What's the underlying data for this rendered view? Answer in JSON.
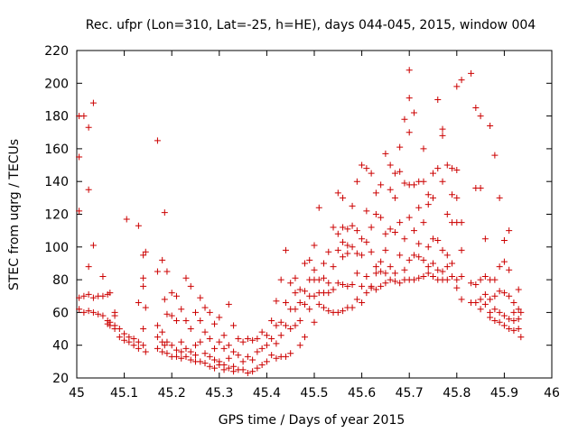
{
  "chart_data": {
    "type": "scatter",
    "title": "Rec. ufpr (Lon=310, Lat=-25, h=HE), days 044-045, 2015, window 004",
    "xlabel": "GPS time / Days of year 2015",
    "ylabel": "STEC from uqrg / TECUs",
    "xlim": [
      45.0,
      46.0
    ],
    "ylim": [
      20,
      220
    ],
    "xticks": [
      "45",
      "45.1",
      "45.2",
      "45.3",
      "45.4",
      "45.5",
      "45.6",
      "45.7",
      "45.8",
      "45.9",
      "46"
    ],
    "yticks": [
      "20",
      "40",
      "60",
      "80",
      "100",
      "120",
      "140",
      "160",
      "180",
      "200",
      "220"
    ],
    "grid": false,
    "legend": "none",
    "marker": "+",
    "color": "#cc0000",
    "points": [
      [
        45.005,
        180
      ],
      [
        45.005,
        155
      ],
      [
        45.005,
        122
      ],
      [
        45.005,
        69
      ],
      [
        45.005,
        62
      ],
      [
        45.015,
        180
      ],
      [
        45.015,
        70
      ],
      [
        45.015,
        60
      ],
      [
        45.025,
        173
      ],
      [
        45.025,
        135
      ],
      [
        45.025,
        88
      ],
      [
        45.025,
        71
      ],
      [
        45.025,
        61
      ],
      [
        45.035,
        188
      ],
      [
        45.035,
        101
      ],
      [
        45.035,
        69
      ],
      [
        45.035,
        60
      ],
      [
        45.045,
        70
      ],
      [
        45.045,
        59
      ],
      [
        45.055,
        82
      ],
      [
        45.055,
        70
      ],
      [
        45.055,
        58
      ],
      [
        45.065,
        71
      ],
      [
        45.065,
        55
      ],
      [
        45.065,
        53
      ],
      [
        45.07,
        72
      ],
      [
        45.07,
        54
      ],
      [
        45.07,
        52
      ],
      [
        45.08,
        60
      ],
      [
        45.08,
        58
      ],
      [
        45.08,
        52
      ],
      [
        45.08,
        50
      ],
      [
        45.09,
        50
      ],
      [
        45.09,
        45
      ],
      [
        45.1,
        47
      ],
      [
        45.1,
        43
      ],
      [
        45.105,
        117
      ],
      [
        45.11,
        45
      ],
      [
        45.11,
        42
      ],
      [
        45.12,
        44
      ],
      [
        45.12,
        40
      ],
      [
        45.13,
        113
      ],
      [
        45.13,
        66
      ],
      [
        45.13,
        42
      ],
      [
        45.13,
        38
      ],
      [
        45.14,
        95
      ],
      [
        45.14,
        81
      ],
      [
        45.14,
        76
      ],
      [
        45.14,
        50
      ],
      [
        45.14,
        40
      ],
      [
        45.145,
        97
      ],
      [
        45.145,
        63
      ],
      [
        45.145,
        36
      ],
      [
        45.17,
        165
      ],
      [
        45.17,
        85
      ],
      [
        45.17,
        52
      ],
      [
        45.17,
        45
      ],
      [
        45.17,
        38
      ],
      [
        45.18,
        92
      ],
      [
        45.18,
        48
      ],
      [
        45.18,
        42
      ],
      [
        45.18,
        36
      ],
      [
        45.185,
        121
      ],
      [
        45.185,
        68
      ],
      [
        45.185,
        40
      ],
      [
        45.19,
        85
      ],
      [
        45.19,
        59
      ],
      [
        45.19,
        42
      ],
      [
        45.19,
        35
      ],
      [
        45.2,
        72
      ],
      [
        45.2,
        58
      ],
      [
        45.2,
        40
      ],
      [
        45.2,
        33
      ],
      [
        45.21,
        70
      ],
      [
        45.21,
        55
      ],
      [
        45.21,
        37
      ],
      [
        45.21,
        33
      ],
      [
        45.22,
        62
      ],
      [
        45.22,
        42
      ],
      [
        45.22,
        36
      ],
      [
        45.22,
        32
      ],
      [
        45.23,
        81
      ],
      [
        45.23,
        55
      ],
      [
        45.23,
        38
      ],
      [
        45.23,
        33
      ],
      [
        45.24,
        76
      ],
      [
        45.24,
        50
      ],
      [
        45.24,
        36
      ],
      [
        45.24,
        31
      ],
      [
        45.25,
        60
      ],
      [
        45.25,
        40
      ],
      [
        45.25,
        34
      ],
      [
        45.25,
        30
      ],
      [
        45.26,
        69
      ],
      [
        45.26,
        55
      ],
      [
        45.26,
        42
      ],
      [
        45.26,
        30
      ],
      [
        45.27,
        63
      ],
      [
        45.27,
        48
      ],
      [
        45.27,
        35
      ],
      [
        45.27,
        29
      ],
      [
        45.28,
        60
      ],
      [
        45.28,
        44
      ],
      [
        45.28,
        33
      ],
      [
        45.28,
        27
      ],
      [
        45.29,
        53
      ],
      [
        45.29,
        38
      ],
      [
        45.29,
        31
      ],
      [
        45.29,
        26
      ],
      [
        45.3,
        57
      ],
      [
        45.3,
        42
      ],
      [
        45.3,
        30
      ],
      [
        45.3,
        28
      ],
      [
        45.31,
        46
      ],
      [
        45.31,
        38
      ],
      [
        45.31,
        28
      ],
      [
        45.31,
        25
      ],
      [
        45.32,
        65
      ],
      [
        45.32,
        40
      ],
      [
        45.32,
        32
      ],
      [
        45.32,
        26
      ],
      [
        45.33,
        52
      ],
      [
        45.33,
        36
      ],
      [
        45.33,
        27
      ],
      [
        45.33,
        24
      ],
      [
        45.34,
        44
      ],
      [
        45.34,
        34
      ],
      [
        45.34,
        25
      ],
      [
        45.35,
        42
      ],
      [
        45.35,
        30
      ],
      [
        45.35,
        25
      ],
      [
        45.36,
        44
      ],
      [
        45.36,
        33
      ],
      [
        45.36,
        23
      ],
      [
        45.37,
        43
      ],
      [
        45.37,
        31
      ],
      [
        45.37,
        24
      ],
      [
        45.38,
        44
      ],
      [
        45.38,
        36
      ],
      [
        45.38,
        26
      ],
      [
        45.39,
        48
      ],
      [
        45.39,
        38
      ],
      [
        45.39,
        28
      ],
      [
        45.4,
        46
      ],
      [
        45.4,
        40
      ],
      [
        45.4,
        30
      ],
      [
        45.41,
        55
      ],
      [
        45.41,
        44
      ],
      [
        45.41,
        34
      ],
      [
        45.42,
        67
      ],
      [
        45.42,
        52
      ],
      [
        45.42,
        41
      ],
      [
        45.42,
        32
      ],
      [
        45.43,
        80
      ],
      [
        45.43,
        54
      ],
      [
        45.43,
        46
      ],
      [
        45.43,
        33
      ],
      [
        45.44,
        98
      ],
      [
        45.44,
        66
      ],
      [
        45.44,
        52
      ],
      [
        45.44,
        33
      ],
      [
        45.45,
        78
      ],
      [
        45.45,
        62
      ],
      [
        45.45,
        50
      ],
      [
        45.45,
        35
      ],
      [
        45.46,
        81
      ],
      [
        45.46,
        72
      ],
      [
        45.46,
        62
      ],
      [
        45.46,
        52
      ],
      [
        45.47,
        74
      ],
      [
        45.47,
        66
      ],
      [
        45.47,
        55
      ],
      [
        45.47,
        40
      ],
      [
        45.48,
        90
      ],
      [
        45.48,
        73
      ],
      [
        45.48,
        65
      ],
      [
        45.48,
        45
      ],
      [
        45.49,
        92
      ],
      [
        45.49,
        80
      ],
      [
        45.49,
        70
      ],
      [
        45.49,
        62
      ],
      [
        45.5,
        101
      ],
      [
        45.5,
        86
      ],
      [
        45.5,
        80
      ],
      [
        45.5,
        70
      ],
      [
        45.5,
        54
      ],
      [
        45.51,
        124
      ],
      [
        45.51,
        80
      ],
      [
        45.51,
        72
      ],
      [
        45.51,
        65
      ],
      [
        45.52,
        90
      ],
      [
        45.52,
        81
      ],
      [
        45.52,
        72
      ],
      [
        45.52,
        63
      ],
      [
        45.53,
        97
      ],
      [
        45.53,
        78
      ],
      [
        45.53,
        72
      ],
      [
        45.53,
        61
      ],
      [
        45.54,
        112
      ],
      [
        45.54,
        88
      ],
      [
        45.54,
        74
      ],
      [
        45.54,
        60
      ],
      [
        45.55,
        133
      ],
      [
        45.55,
        108
      ],
      [
        45.55,
        98
      ],
      [
        45.55,
        78
      ],
      [
        45.55,
        60
      ],
      [
        45.56,
        130
      ],
      [
        45.56,
        112
      ],
      [
        45.56,
        103
      ],
      [
        45.56,
        94
      ],
      [
        45.56,
        77
      ],
      [
        45.56,
        61
      ],
      [
        45.57,
        111
      ],
      [
        45.57,
        101
      ],
      [
        45.57,
        96
      ],
      [
        45.57,
        76
      ],
      [
        45.57,
        63
      ],
      [
        45.58,
        125
      ],
      [
        45.58,
        113
      ],
      [
        45.58,
        100
      ],
      [
        45.58,
        77
      ],
      [
        45.58,
        63
      ],
      [
        45.59,
        140
      ],
      [
        45.59,
        110
      ],
      [
        45.59,
        96
      ],
      [
        45.59,
        84
      ],
      [
        45.59,
        68
      ],
      [
        45.6,
        150
      ],
      [
        45.6,
        105
      ],
      [
        45.6,
        95
      ],
      [
        45.6,
        76
      ],
      [
        45.6,
        66
      ],
      [
        45.61,
        148
      ],
      [
        45.61,
        122
      ],
      [
        45.61,
        103
      ],
      [
        45.61,
        82
      ],
      [
        45.61,
        72
      ],
      [
        45.62,
        145
      ],
      [
        45.62,
        112
      ],
      [
        45.62,
        97
      ],
      [
        45.62,
        76
      ],
      [
        45.62,
        75
      ],
      [
        45.63,
        133
      ],
      [
        45.63,
        120
      ],
      [
        45.63,
        88
      ],
      [
        45.63,
        84
      ],
      [
        45.63,
        74
      ],
      [
        45.64,
        138
      ],
      [
        45.64,
        118
      ],
      [
        45.64,
        91
      ],
      [
        45.64,
        85
      ],
      [
        45.64,
        76
      ],
      [
        45.65,
        157
      ],
      [
        45.65,
        108
      ],
      [
        45.65,
        98
      ],
      [
        45.65,
        84
      ],
      [
        45.65,
        78
      ],
      [
        45.66,
        150
      ],
      [
        45.66,
        135
      ],
      [
        45.66,
        111
      ],
      [
        45.66,
        88
      ],
      [
        45.66,
        80
      ],
      [
        45.67,
        145
      ],
      [
        45.67,
        130
      ],
      [
        45.67,
        109
      ],
      [
        45.67,
        84
      ],
      [
        45.67,
        79
      ],
      [
        45.68,
        161
      ],
      [
        45.68,
        146
      ],
      [
        45.68,
        115
      ],
      [
        45.68,
        95
      ],
      [
        45.68,
        78
      ],
      [
        45.69,
        178
      ],
      [
        45.69,
        139
      ],
      [
        45.69,
        105
      ],
      [
        45.69,
        86
      ],
      [
        45.69,
        80
      ],
      [
        45.7,
        208
      ],
      [
        45.7,
        191
      ],
      [
        45.7,
        170
      ],
      [
        45.7,
        138
      ],
      [
        45.7,
        118
      ],
      [
        45.7,
        92
      ],
      [
        45.7,
        80
      ],
      [
        45.71,
        182
      ],
      [
        45.71,
        138
      ],
      [
        45.71,
        110
      ],
      [
        45.71,
        95
      ],
      [
        45.71,
        80
      ],
      [
        45.72,
        140
      ],
      [
        45.72,
        124
      ],
      [
        45.72,
        102
      ],
      [
        45.72,
        94
      ],
      [
        45.72,
        81
      ],
      [
        45.73,
        160
      ],
      [
        45.73,
        140
      ],
      [
        45.73,
        115
      ],
      [
        45.73,
        92
      ],
      [
        45.73,
        82
      ],
      [
        45.74,
        132
      ],
      [
        45.74,
        126
      ],
      [
        45.74,
        100
      ],
      [
        45.74,
        88
      ],
      [
        45.74,
        84
      ],
      [
        45.75,
        145
      ],
      [
        45.75,
        130
      ],
      [
        45.75,
        105
      ],
      [
        45.75,
        90
      ],
      [
        45.75,
        82
      ],
      [
        45.76,
        190
      ],
      [
        45.76,
        148
      ],
      [
        45.76,
        104
      ],
      [
        45.76,
        86
      ],
      [
        45.76,
        80
      ],
      [
        45.77,
        172
      ],
      [
        45.77,
        168
      ],
      [
        45.77,
        140
      ],
      [
        45.77,
        98
      ],
      [
        45.77,
        85
      ],
      [
        45.77,
        80
      ],
      [
        45.78,
        150
      ],
      [
        45.78,
        120
      ],
      [
        45.78,
        95
      ],
      [
        45.78,
        88
      ],
      [
        45.78,
        80
      ],
      [
        45.79,
        148
      ],
      [
        45.79,
        132
      ],
      [
        45.79,
        115
      ],
      [
        45.79,
        90
      ],
      [
        45.79,
        82
      ],
      [
        45.8,
        198
      ],
      [
        45.8,
        147
      ],
      [
        45.8,
        130
      ],
      [
        45.8,
        115
      ],
      [
        45.8,
        80
      ],
      [
        45.8,
        75
      ],
      [
        45.81,
        202
      ],
      [
        45.81,
        115
      ],
      [
        45.81,
        98
      ],
      [
        45.81,
        82
      ],
      [
        45.81,
        68
      ],
      [
        45.83,
        206
      ],
      [
        45.83,
        78
      ],
      [
        45.83,
        66
      ],
      [
        45.84,
        185
      ],
      [
        45.84,
        136
      ],
      [
        45.84,
        77
      ],
      [
        45.84,
        66
      ],
      [
        45.85,
        180
      ],
      [
        45.85,
        136
      ],
      [
        45.85,
        80
      ],
      [
        45.85,
        68
      ],
      [
        45.85,
        62
      ],
      [
        45.86,
        105
      ],
      [
        45.86,
        82
      ],
      [
        45.86,
        71
      ],
      [
        45.86,
        65
      ],
      [
        45.87,
        174
      ],
      [
        45.87,
        80
      ],
      [
        45.87,
        68
      ],
      [
        45.87,
        60
      ],
      [
        45.87,
        57
      ],
      [
        45.88,
        156
      ],
      [
        45.88,
        80
      ],
      [
        45.88,
        70
      ],
      [
        45.88,
        62
      ],
      [
        45.88,
        55
      ],
      [
        45.89,
        130
      ],
      [
        45.89,
        88
      ],
      [
        45.89,
        73
      ],
      [
        45.89,
        60
      ],
      [
        45.89,
        54
      ],
      [
        45.9,
        104
      ],
      [
        45.9,
        91
      ],
      [
        45.9,
        72
      ],
      [
        45.9,
        58
      ],
      [
        45.9,
        52
      ],
      [
        45.91,
        110
      ],
      [
        45.91,
        86
      ],
      [
        45.91,
        70
      ],
      [
        45.91,
        56
      ],
      [
        45.91,
        50
      ],
      [
        45.92,
        66
      ],
      [
        45.92,
        60
      ],
      [
        45.92,
        55
      ],
      [
        45.92,
        49
      ],
      [
        45.93,
        74
      ],
      [
        45.93,
        62
      ],
      [
        45.93,
        56
      ],
      [
        45.93,
        50
      ],
      [
        45.935,
        60
      ],
      [
        45.935,
        45
      ]
    ]
  }
}
